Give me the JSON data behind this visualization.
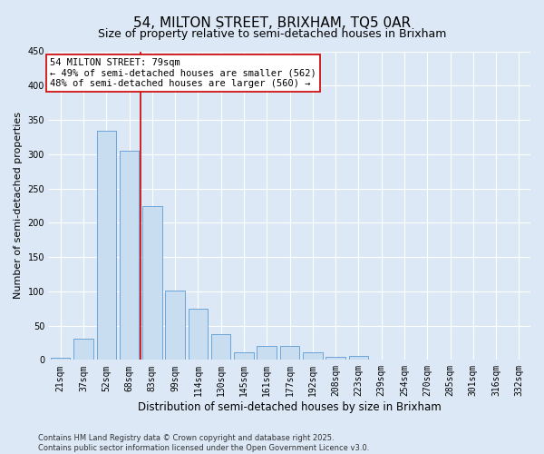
{
  "title": "54, MILTON STREET, BRIXHAM, TQ5 0AR",
  "subtitle": "Size of property relative to semi-detached houses in Brixham",
  "xlabel": "Distribution of semi-detached houses by size in Brixham",
  "ylabel": "Number of semi-detached properties",
  "categories": [
    "21sqm",
    "37sqm",
    "52sqm",
    "68sqm",
    "83sqm",
    "99sqm",
    "114sqm",
    "130sqm",
    "145sqm",
    "161sqm",
    "177sqm",
    "192sqm",
    "208sqm",
    "223sqm",
    "239sqm",
    "254sqm",
    "270sqm",
    "285sqm",
    "301sqm",
    "316sqm",
    "332sqm"
  ],
  "values": [
    3,
    31,
    334,
    305,
    224,
    101,
    75,
    37,
    11,
    20,
    20,
    11,
    5,
    6,
    0,
    0,
    0,
    1,
    0,
    0,
    0
  ],
  "bar_color": "#c9ddf0",
  "bar_edge_color": "#5b9bd5",
  "vline_x": 3.5,
  "vline_color": "#cc0000",
  "annotation_line1": "54 MILTON STREET: 79sqm",
  "annotation_line2": "← 49% of semi-detached houses are smaller (562)",
  "annotation_line3": "48% of semi-detached houses are larger (560) →",
  "annotation_box_color": "white",
  "annotation_box_edge": "#cc0000",
  "ylim": [
    0,
    450
  ],
  "yticks": [
    0,
    50,
    100,
    150,
    200,
    250,
    300,
    350,
    400,
    450
  ],
  "bg_color": "#dce8f5",
  "plot_bg_color": "#dce8f5",
  "footer_text": "Contains HM Land Registry data © Crown copyright and database right 2025.\nContains public sector information licensed under the Open Government Licence v3.0.",
  "title_fontsize": 11,
  "subtitle_fontsize": 9,
  "xlabel_fontsize": 8.5,
  "ylabel_fontsize": 8,
  "tick_fontsize": 7,
  "annotation_fontsize": 7.5,
  "footer_fontsize": 6
}
